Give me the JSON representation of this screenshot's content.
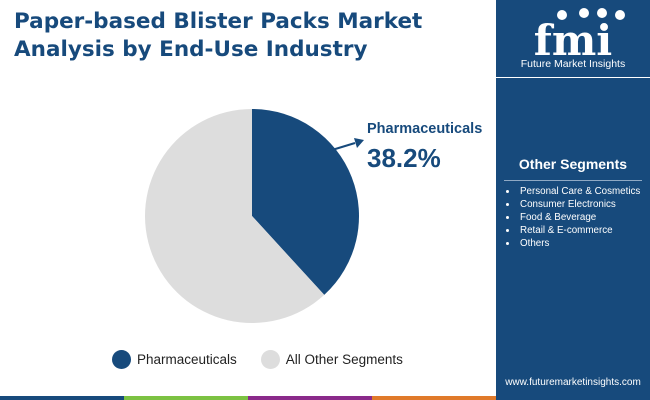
{
  "header": {
    "title": "Paper-based Blister Packs Market Analysis by End-Use Industry"
  },
  "brand": {
    "logo_text": "fmi",
    "logo_subtitle": "Future Market Insights",
    "website": "www.futuremarketinsights.com",
    "primary_color": "#174a7c"
  },
  "sidebar": {
    "segments_title": "Other Segments",
    "segments": [
      "Personal Care & Cosmetics",
      "Consumer Electronics",
      "Food & Beverage",
      "Retail & E-commerce",
      "Others"
    ]
  },
  "chart_data": {
    "type": "pie",
    "title": "",
    "slices": [
      {
        "label": "Pharmaceuticals",
        "value": 38.2,
        "color": "#174a7c"
      },
      {
        "label": "All Other Segments",
        "value": 61.8,
        "color": "#dddddd"
      }
    ],
    "callout": {
      "label": "Pharmaceuticals",
      "value_text": "38.2%"
    },
    "legend": {
      "placement": "bottom",
      "entries": [
        {
          "label": "Pharmaceuticals",
          "color": "#174a7c"
        },
        {
          "label": "All Other Segments",
          "color": "#dddddd"
        }
      ]
    }
  },
  "footer": {
    "bar_colors": [
      "#174a7c",
      "#7cc242",
      "#8a2a8a",
      "#e07a2a"
    ]
  }
}
